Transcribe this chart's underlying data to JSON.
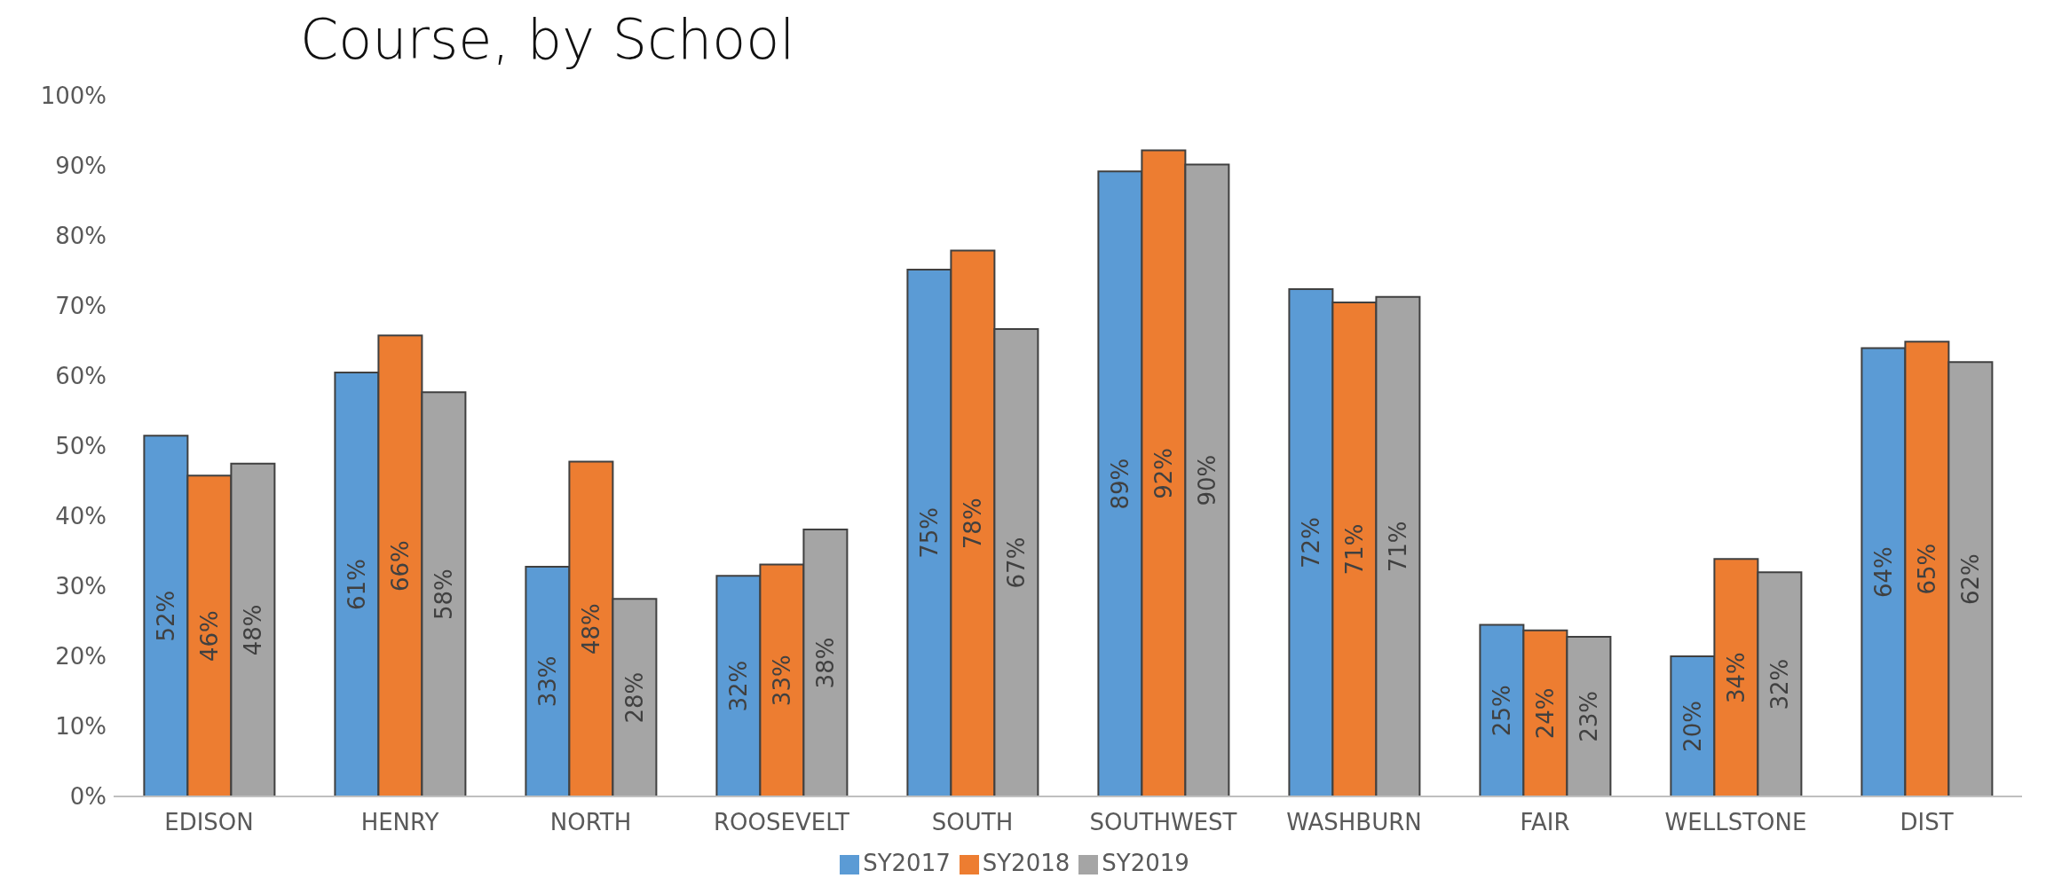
{
  "chart_data": {
    "type": "bar",
    "title": "Course, by School",
    "categories": [
      "EDISON",
      "HENRY",
      "NORTH",
      "ROOSEVELT",
      "SOUTH",
      "SOUTHWEST",
      "WASHBURN",
      "FAIR",
      "WELLSTONE",
      "DIST"
    ],
    "series": [
      {
        "name": "SY2017",
        "color": "#5b9bd5",
        "values": [
          51.5,
          60.5,
          32.8,
          31.5,
          75.2,
          89.2,
          72.4,
          24.5,
          20.0,
          64.0
        ],
        "value_labels": [
          "52%",
          "61%",
          "33%",
          "32%",
          "75%",
          "89%",
          "72%",
          "25%",
          "20%",
          "64%"
        ]
      },
      {
        "name": "SY2018",
        "color": "#ed7d31",
        "values": [
          45.8,
          65.8,
          47.8,
          33.1,
          77.9,
          92.2,
          70.5,
          23.7,
          33.9,
          64.9
        ],
        "value_labels": [
          "46%",
          "66%",
          "48%",
          "33%",
          "78%",
          "92%",
          "71%",
          "24%",
          "34%",
          "65%"
        ]
      },
      {
        "name": "SY2019",
        "color": "#a5a5a5",
        "values": [
          47.5,
          57.7,
          28.2,
          38.1,
          66.7,
          90.2,
          71.3,
          22.8,
          32.0,
          62.0
        ],
        "value_labels": [
          "48%",
          "58%",
          "28%",
          "38%",
          "67%",
          "90%",
          "71%",
          "23%",
          "32%",
          "62%"
        ]
      }
    ],
    "ylim": [
      0,
      100
    ],
    "yticks": [
      {
        "value": 0,
        "label": "0%"
      },
      {
        "value": 10,
        "label": "10%"
      },
      {
        "value": 20,
        "label": "20%"
      },
      {
        "value": 30,
        "label": "30%"
      },
      {
        "value": 40,
        "label": "40%"
      },
      {
        "value": 50,
        "label": "50%"
      },
      {
        "value": 60,
        "label": "60%"
      },
      {
        "value": 70,
        "label": "70%"
      },
      {
        "value": 80,
        "label": "80%"
      },
      {
        "value": 90,
        "label": "90%"
      },
      {
        "value": 100,
        "label": "100%"
      }
    ],
    "grid": false,
    "legend": "bottom"
  }
}
